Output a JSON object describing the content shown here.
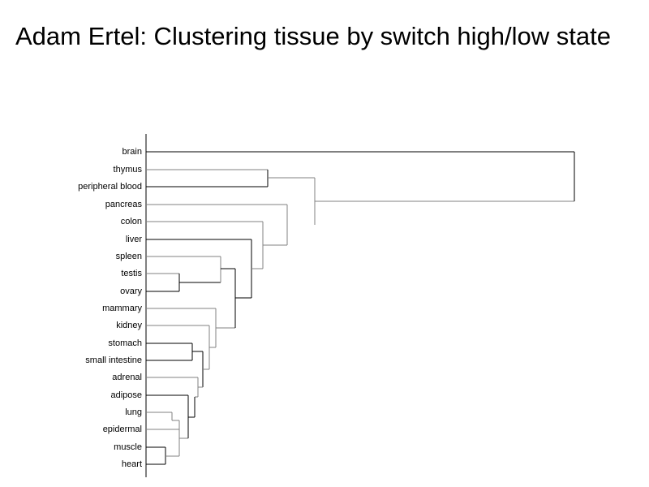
{
  "slide": {
    "title": "Adam Ertel: Clustering tissue by switch high/low state"
  },
  "dendrogram": {
    "leaves": [
      "brain",
      "thymus",
      "peripheral blood",
      "pancreas",
      "colon",
      "liver",
      "spleen",
      "testis",
      "ovary",
      "mammary",
      "kidney",
      "stomach",
      "small intestine",
      "adrenal",
      "adipose",
      "lung",
      "epidermal",
      "muscle",
      "heart"
    ],
    "colors": {
      "dark": "#000000",
      "light": "#808080"
    }
  }
}
